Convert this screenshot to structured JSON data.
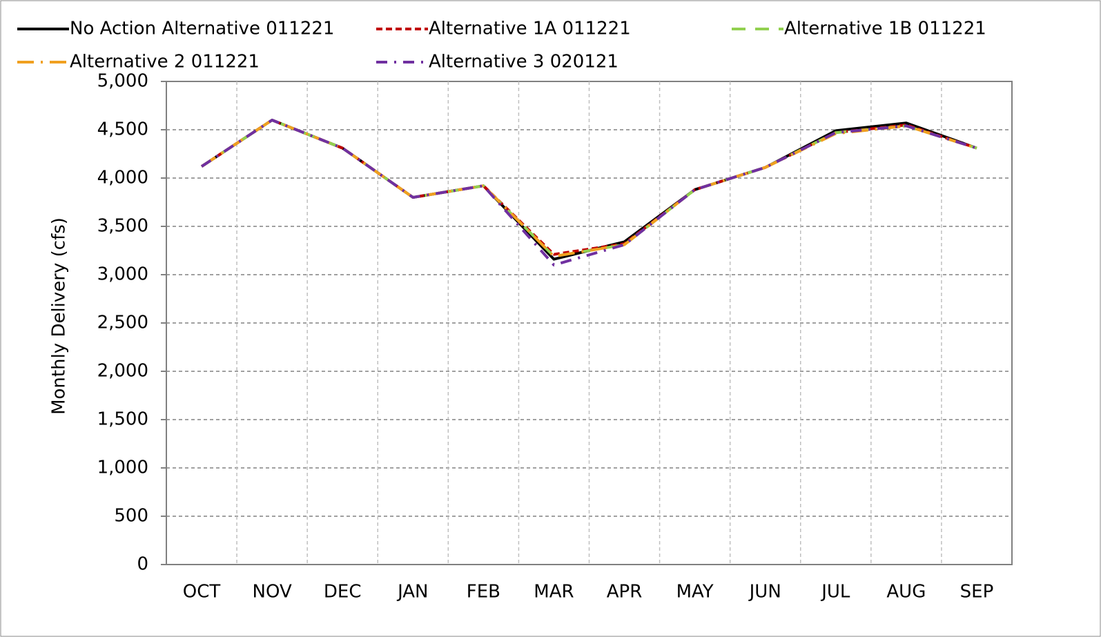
{
  "chart_data": {
    "type": "line",
    "y_label": "Monthly Delivery (cfs)",
    "categories": [
      "OCT",
      "NOV",
      "DEC",
      "JAN",
      "FEB",
      "MAR",
      "APR",
      "MAY",
      "JUN",
      "JUL",
      "AUG",
      "SEP"
    ],
    "ylim": [
      0,
      5000
    ],
    "yticks": [
      0,
      500,
      {
        "value": 1000,
        "label": "1,000"
      },
      {
        "value": 1500,
        "label": "1,500"
      },
      {
        "value": 2000,
        "label": "2,000"
      },
      {
        "value": 2500,
        "label": "2,500"
      },
      {
        "value": 3000,
        "label": "3,000"
      },
      {
        "value": 3500,
        "label": "3,500"
      },
      {
        "value": 4000,
        "label": "4,000"
      },
      {
        "value": 4500,
        "label": "4,500"
      },
      {
        "value": 5000,
        "label": "5,000"
      }
    ],
    "grid": true,
    "series": [
      {
        "name": "No Action Alternative 011221",
        "color": "#000000",
        "dash": "solid",
        "values": [
          4120,
          4600,
          4310,
          3800,
          3920,
          3160,
          3340,
          3880,
          4110,
          4490,
          4570,
          4310
        ]
      },
      {
        "name": "Alternative 1A 011221",
        "color": "#c00000",
        "dash": "dash",
        "values": [
          4120,
          4600,
          4310,
          3800,
          3920,
          3210,
          3320,
          3880,
          4110,
          4470,
          4550,
          4310
        ]
      },
      {
        "name": "Alternative 1B 011221",
        "color": "#92d050",
        "dash": "longdash",
        "values": [
          4120,
          4600,
          4310,
          3800,
          3920,
          3190,
          3310,
          3880,
          4110,
          4470,
          4540,
          4310
        ]
      },
      {
        "name": "Alternative 2 011221",
        "color": "#f0a020",
        "dash": "longdashdot",
        "values": [
          4120,
          4600,
          4310,
          3800,
          3920,
          3190,
          3310,
          3880,
          4110,
          4460,
          4540,
          4310
        ]
      },
      {
        "name": "Alternative 3 020121",
        "color": "#7030a0",
        "dash": "dashdot",
        "values": [
          4120,
          4600,
          4310,
          3800,
          3920,
          3100,
          3310,
          3880,
          4110,
          4470,
          4540,
          4310
        ]
      }
    ]
  }
}
